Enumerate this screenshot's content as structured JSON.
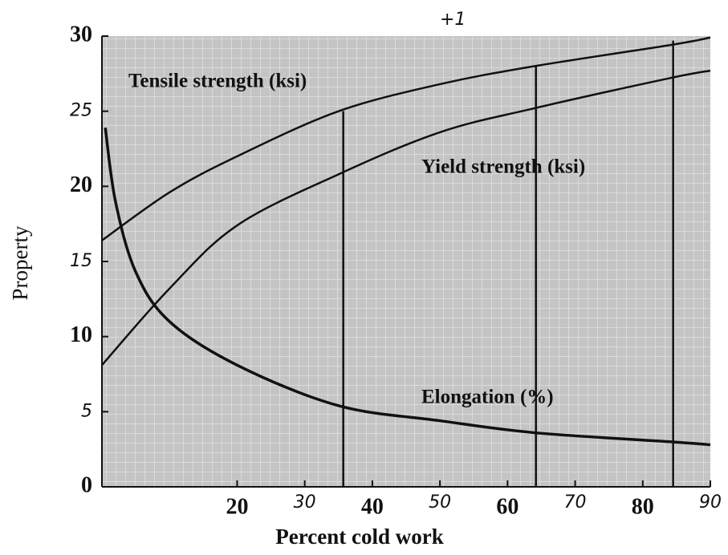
{
  "chart_data": {
    "type": "line",
    "xlabel": "Percent cold work",
    "ylabel": "Property",
    "xlim": [
      0,
      90
    ],
    "ylim": [
      0,
      30
    ],
    "xticks": [
      20,
      30,
      40,
      50,
      60,
      70,
      80,
      90
    ],
    "yticks": [
      0,
      5,
      10,
      15,
      20,
      25,
      30
    ],
    "grid": true,
    "series": [
      {
        "name": "Tensile strength (ksi)",
        "color": "#111111",
        "x": [
          0,
          10,
          20,
          35,
          50,
          64,
          84,
          90
        ],
        "values": [
          16.4,
          19.6,
          22,
          25,
          26.8,
          28,
          29.4,
          29.9
        ]
      },
      {
        "name": "Yield strength (ksi)",
        "color": "#111111",
        "x": [
          0,
          10,
          20,
          35,
          50,
          64,
          84,
          90
        ],
        "values": [
          8.1,
          13.2,
          17.4,
          20.8,
          23.6,
          25.2,
          27.2,
          27.7
        ]
      },
      {
        "name": "Elongation (%)",
        "color": "#111111",
        "x": [
          0.5,
          2,
          5,
          10,
          20,
          35,
          50,
          64,
          84,
          90
        ],
        "values": [
          23.9,
          19,
          14.3,
          11,
          8.1,
          5.4,
          4.4,
          3.6,
          3.0,
          2.8
        ]
      }
    ],
    "vertical_lines": [
      {
        "x": 35.7,
        "top": 25
      },
      {
        "x": 64.2,
        "top": 28
      },
      {
        "x": 84.5,
        "top": 29.7
      }
    ],
    "annotations": [
      "+1"
    ]
  }
}
